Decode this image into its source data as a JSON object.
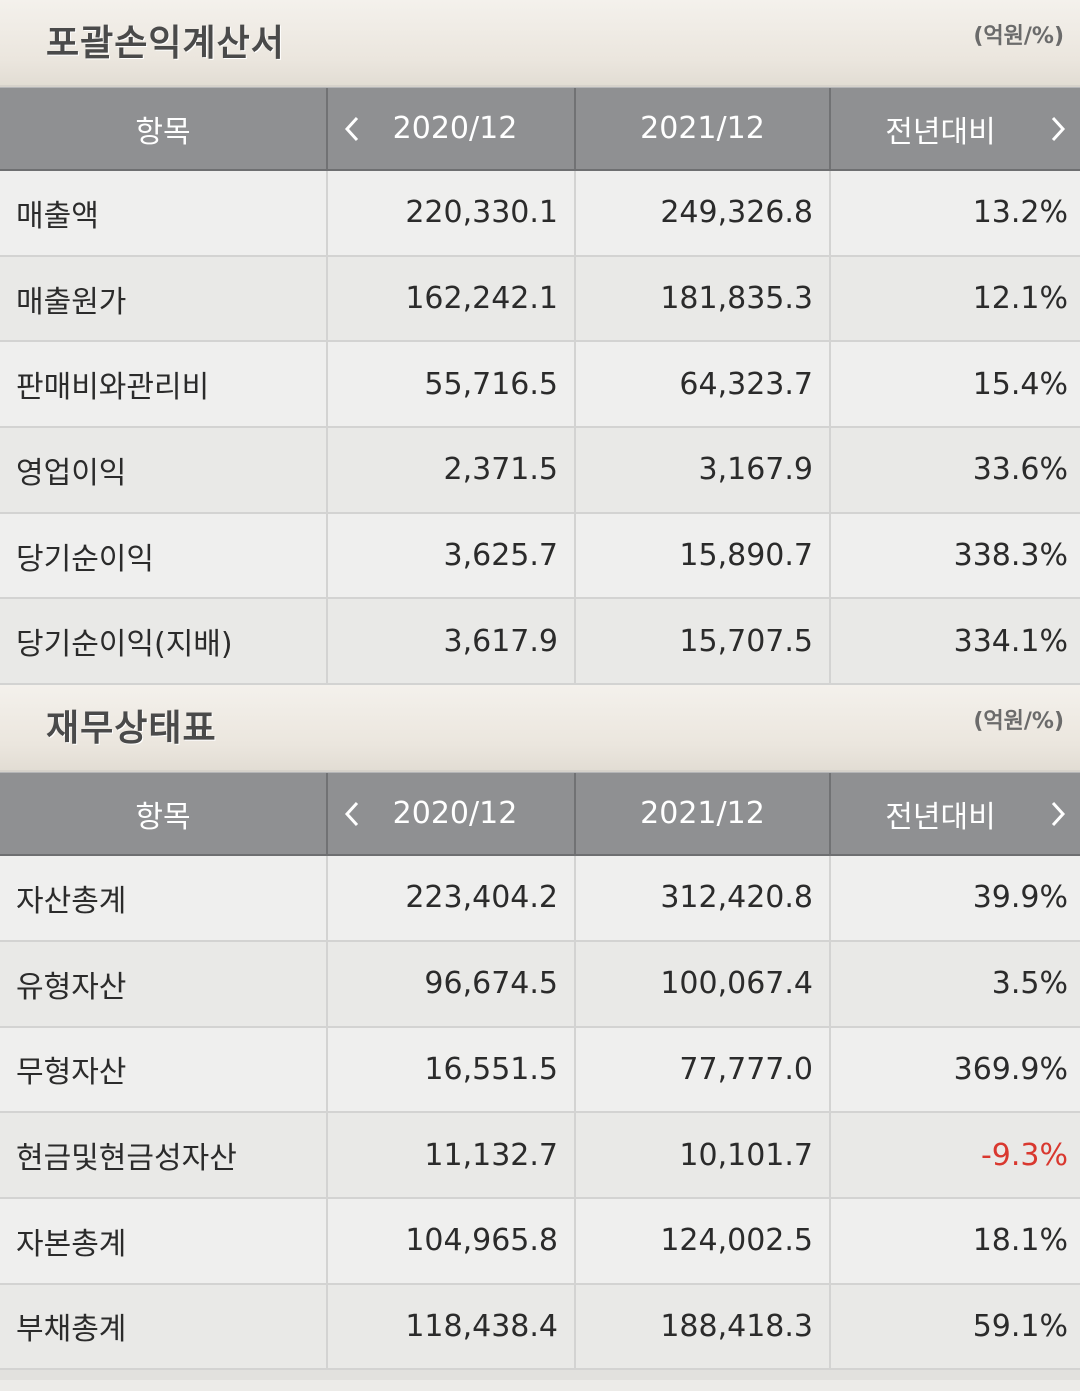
{
  "income": {
    "title": "포괄손익계산서",
    "unit": "(억원/%)",
    "headers": [
      "항목",
      "2020/12",
      "2021/12",
      "전년대비"
    ],
    "rows": [
      {
        "label": "매출액",
        "v2020": "220,330.1",
        "v2021": "249,326.8",
        "yoy": "13.2%"
      },
      {
        "label": "매출원가",
        "v2020": "162,242.1",
        "v2021": "181,835.3",
        "yoy": "12.1%"
      },
      {
        "label": "판매비와관리비",
        "v2020": "55,716.5",
        "v2021": "64,323.7",
        "yoy": "15.4%"
      },
      {
        "label": "영업이익",
        "v2020": "2,371.5",
        "v2021": "3,167.9",
        "yoy": "33.6%"
      },
      {
        "label": "당기순이익",
        "v2020": "3,625.7",
        "v2021": "15,890.7",
        "yoy": "338.3%"
      },
      {
        "label": "당기순이익(지배)",
        "v2020": "3,617.9",
        "v2021": "15,707.5",
        "yoy": "334.1%"
      }
    ]
  },
  "balance": {
    "title": "재무상태표",
    "unit": "(억원/%)",
    "headers": [
      "항목",
      "2020/12",
      "2021/12",
      "전년대비"
    ],
    "rows": [
      {
        "label": "자산총계",
        "v2020": "223,404.2",
        "v2021": "312,420.8",
        "yoy": "39.9%"
      },
      {
        "label": "유형자산",
        "v2020": "96,674.5",
        "v2021": "100,067.4",
        "yoy": "3.5%"
      },
      {
        "label": "무형자산",
        "v2020": "16,551.5",
        "v2021": "77,777.0",
        "yoy": "369.9%"
      },
      {
        "label": "현금및현금성자산",
        "v2020": "11,132.7",
        "v2021": "10,101.7",
        "yoy": "-9.3%",
        "negative": true
      },
      {
        "label": "자본총계",
        "v2020": "104,965.8",
        "v2021": "124,002.5",
        "yoy": "18.1%"
      },
      {
        "label": "부채총계",
        "v2020": "118,438.4",
        "v2021": "188,418.3",
        "yoy": "59.1%"
      }
    ]
  },
  "colors": {
    "header_bg": "#8f9092",
    "negative": "#d9382f",
    "title_text": "#4a4a4a"
  },
  "icons": {
    "prev": "chevron-left-icon",
    "next": "chevron-right-icon"
  }
}
